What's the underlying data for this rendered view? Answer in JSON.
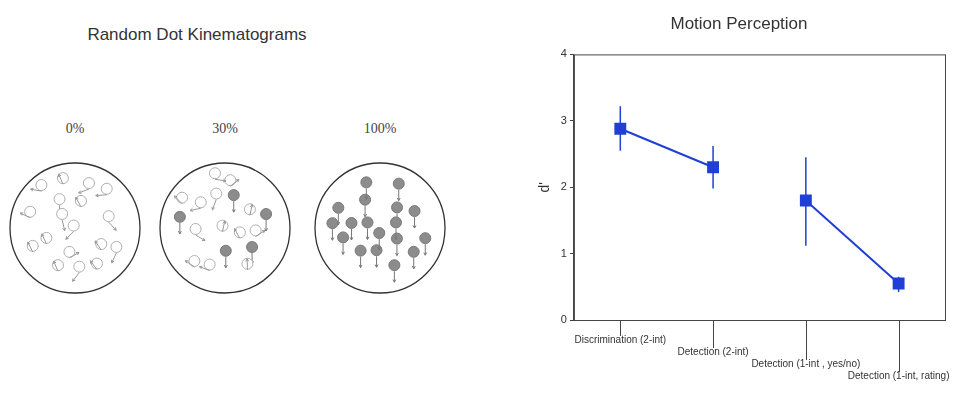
{
  "diagram": {
    "title": "Random Dot Kinematograms",
    "panels": [
      {
        "label": "0%",
        "coherence": 0
      },
      {
        "label": "30%",
        "coherence": 30
      },
      {
        "label": "100%",
        "coherence": 100
      }
    ]
  },
  "chart_data": {
    "type": "line",
    "title": "Motion Perception",
    "y_label": "d'",
    "categories": [
      "Discrimination (2-int)",
      "Detection (2-int)",
      "Detection (1-int , yes/no)",
      "Detection (1-int, rating)"
    ],
    "series": [
      {
        "color": "#1f3fd6",
        "marker": "square",
        "line_style": "solid",
        "values": [
          2.88,
          2.3,
          null,
          null
        ],
        "error_bars": [
          [
            2.55,
            3.22
          ],
          [
            1.98,
            2.62
          ],
          null,
          null
        ]
      },
      {
        "color": "#1f3fd6",
        "marker": "square",
        "line_style": "solid",
        "values": [
          null,
          null,
          1.8,
          0.55
        ],
        "error_bars": [
          null,
          null,
          [
            1.12,
            2.45
          ],
          [
            0.42,
            0.65
          ]
        ]
      }
    ],
    "ylim": [
      0,
      4
    ],
    "yticks": [
      0,
      1,
      2,
      3,
      4
    ],
    "grid": false
  }
}
